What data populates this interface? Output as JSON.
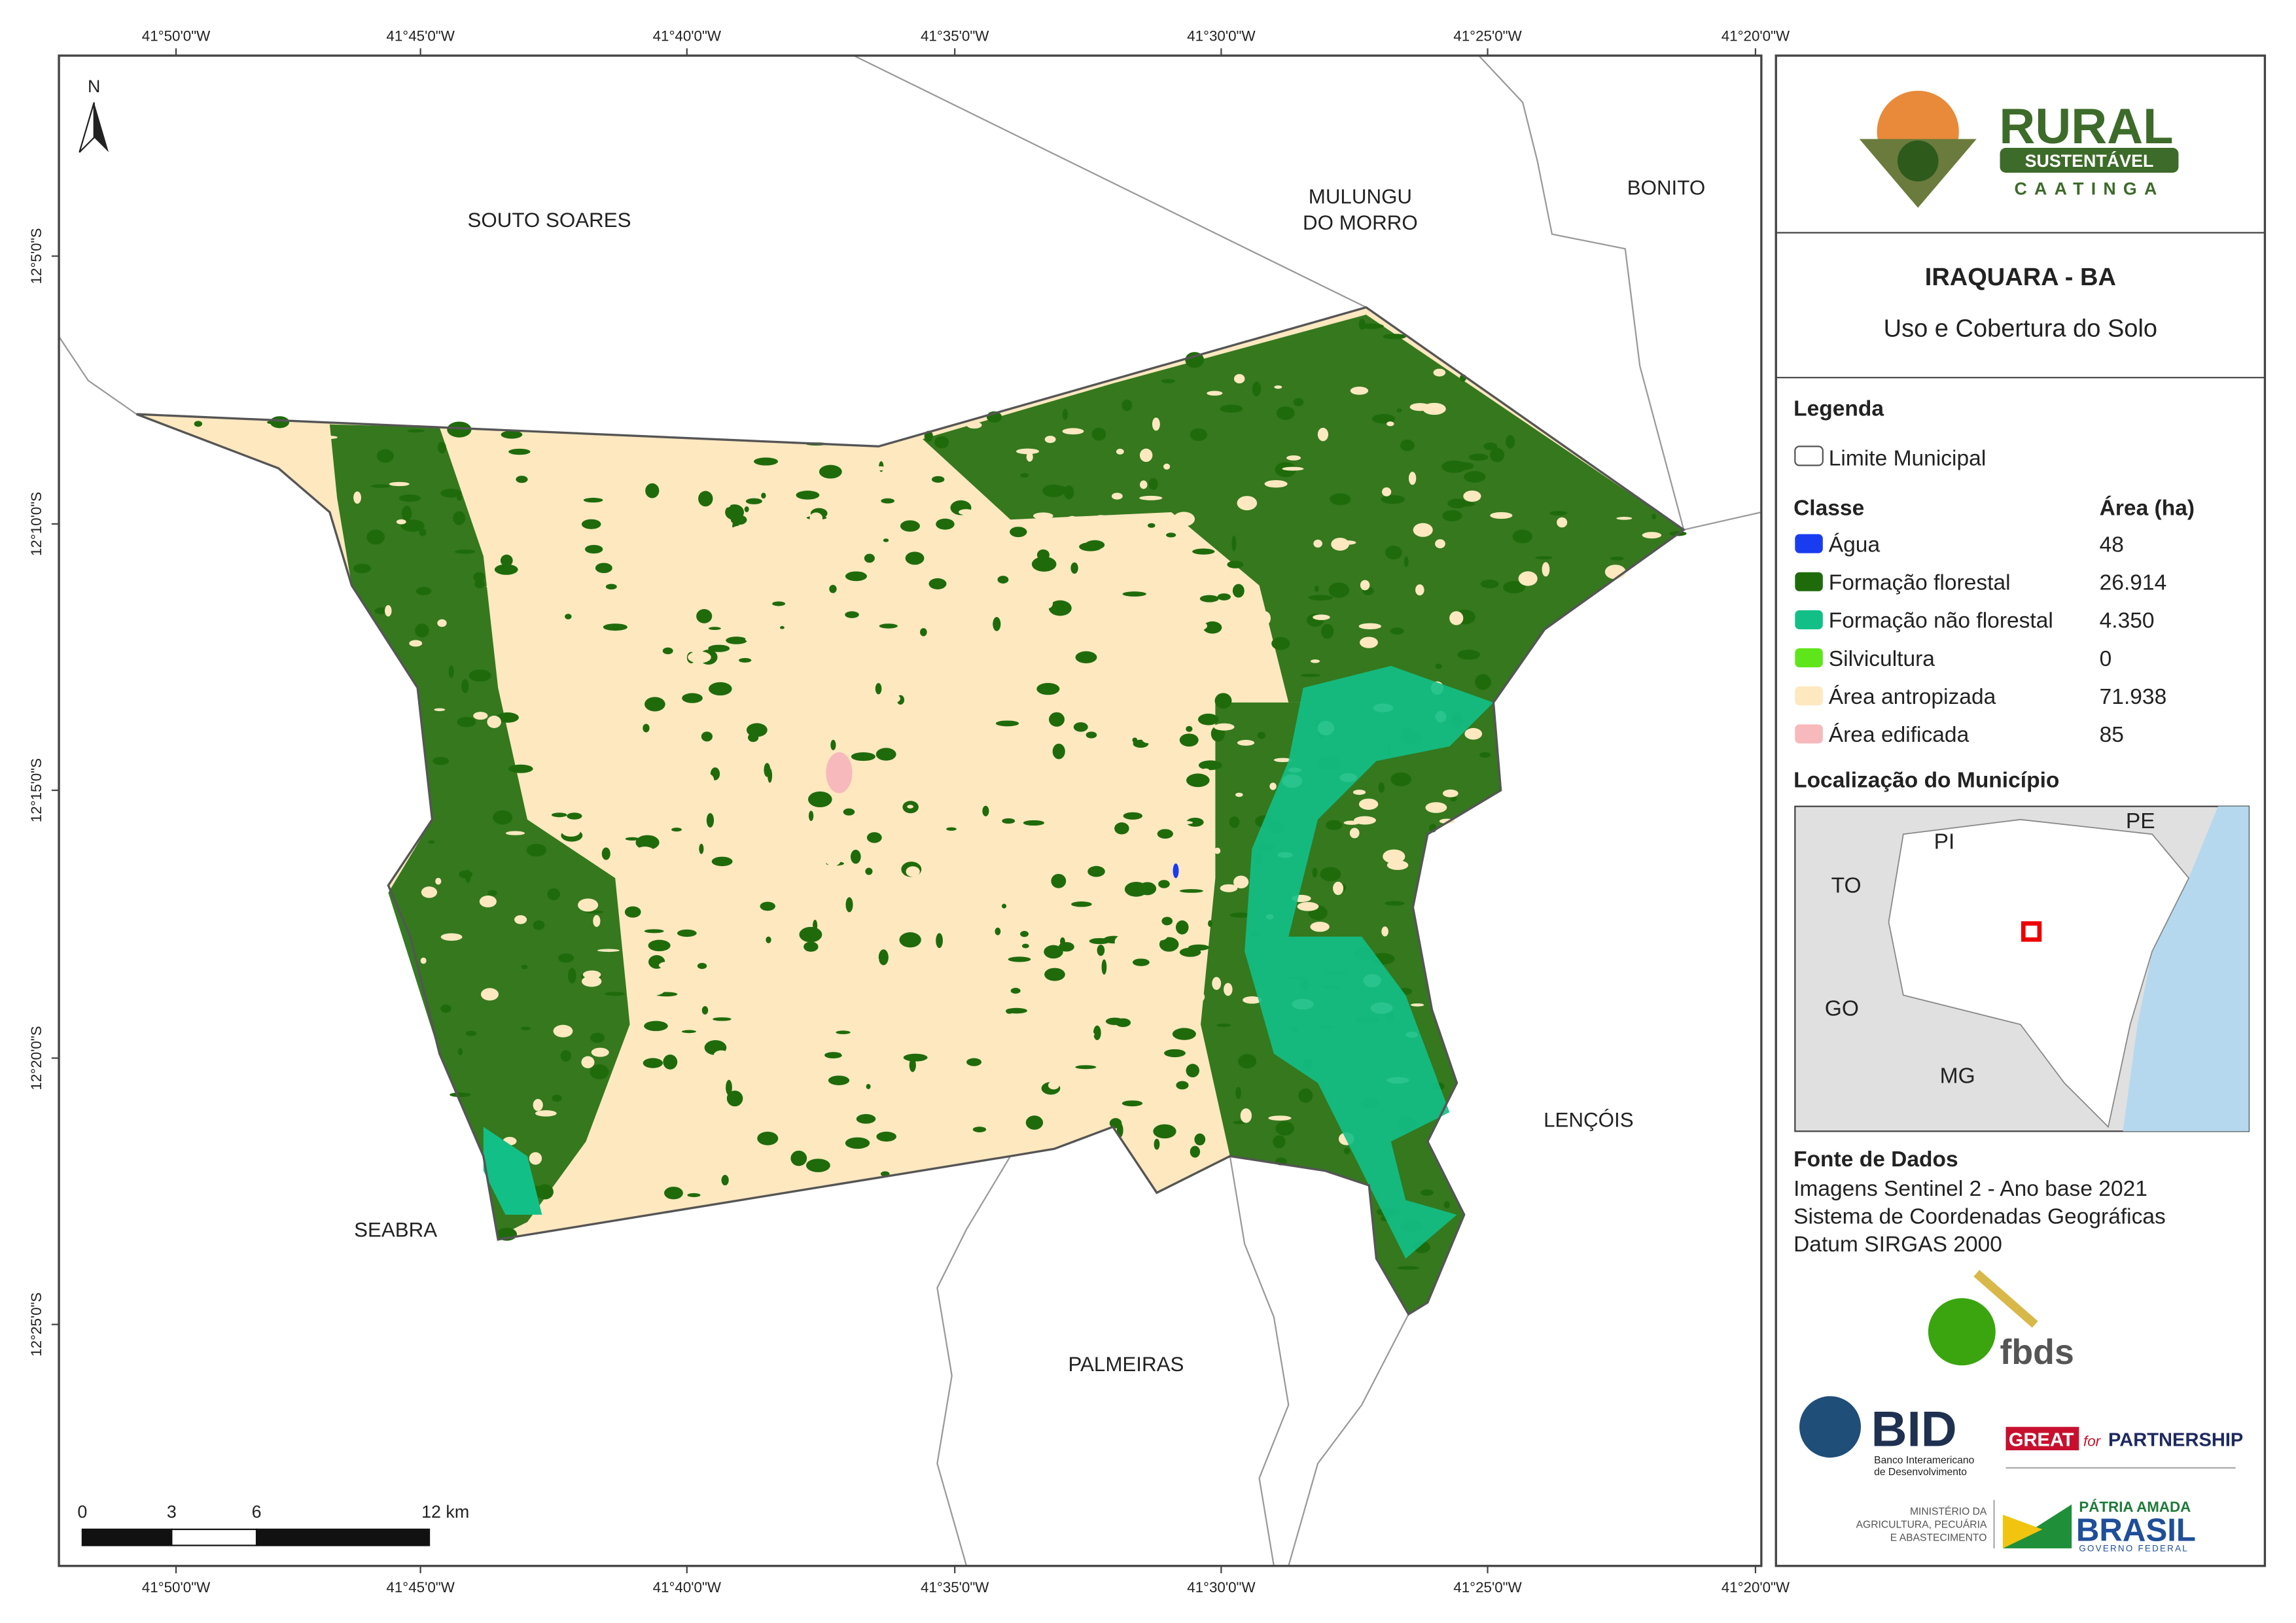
{
  "map": {
    "lon_labels": [
      "41°50'0\"W",
      "41°45'0\"W",
      "41°40'0\"W",
      "41°35'0\"W",
      "41°30'0\"W",
      "41°25'0\"W",
      "41°20'0\"W"
    ],
    "lat_labels": [
      "12°5'0\"S",
      "12°10'0\"S",
      "12°15'0\"S",
      "12°20'0\"S",
      "12°25'0\"S"
    ],
    "north": "N",
    "places": [
      [
        "SOUTO SOARES"
      ],
      [
        "MULUNGU",
        "DO MORRO"
      ],
      [
        "BONITO"
      ],
      [
        "SEABRA"
      ],
      [
        "LENÇÓIS"
      ],
      [
        "PALMEIRAS"
      ]
    ],
    "scale_labels": [
      "0",
      "3",
      "6",
      "12 km"
    ]
  },
  "legend": {
    "brand": {
      "line1": "RURAL",
      "line2": "SUSTENTÁVEL",
      "line3": "CAATINGA"
    },
    "title": "IRAQUARA - BA",
    "subtitle": "Uso e Cobertura do Solo",
    "legend_title": "Legenda",
    "boundary": "Limite Municipal",
    "class_header": "Classe",
    "area_header": "Área (ha)",
    "classes": [
      {
        "name": "Água",
        "area": "48",
        "color": "#1a3cf0"
      },
      {
        "name": "Formação florestal",
        "area": "26.914",
        "color": "#1f6b0c"
      },
      {
        "name": "Formação não florestal",
        "area": "4.350",
        "color": "#12c087"
      },
      {
        "name": "Silvicultura",
        "area": "0",
        "color": "#5ee61a"
      },
      {
        "name": "Área antropizada",
        "area": "71.938",
        "color": "#fde8c0"
      },
      {
        "name": "Área edificada",
        "area": "85",
        "color": "#f7b9bb"
      }
    ],
    "location_title": "Localização do Município",
    "inset_labels": [
      "PI",
      "PE",
      "TO",
      "GO",
      "MG"
    ],
    "source_title": "Fonte de Dados",
    "source_lines": [
      "Imagens Sentinel 2 - Ano base 2021",
      "Sistema de Coordenadas Geográficas",
      "Datum SIRGAS 2000"
    ],
    "logos": {
      "fbds": "fbds",
      "bid": "BID",
      "bid_sub": [
        "Banco Interamericano",
        "de Desenvolvimento"
      ],
      "great": "GREAT",
      "for": "for",
      "partnership": "PARTNERSHIP",
      "ministry": [
        "MINISTÉRIO DA",
        "AGRICULTURA, PECUÁRIA",
        "E ABASTECIMENTO"
      ],
      "patria": "PÁTRIA AMADA",
      "brasil": "BRASIL",
      "gov": "GOVERNO FEDERAL"
    }
  }
}
